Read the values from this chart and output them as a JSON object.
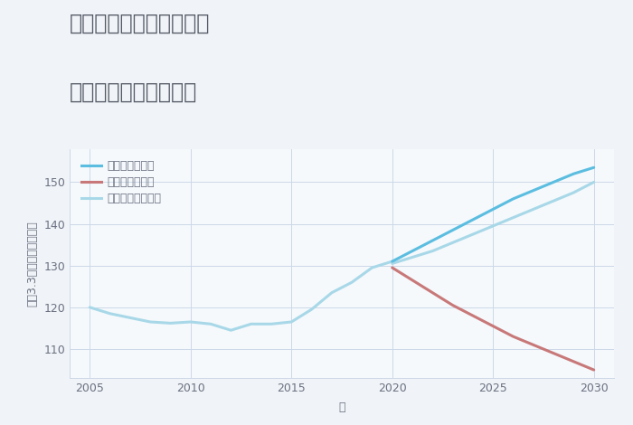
{
  "title_line1": "兵庫県西宮市今津曙町の",
  "title_line2": "中古戸建ての価格推移",
  "xlabel": "年",
  "ylabel": "坪（3.3㎡）単価（万円）",
  "background_color": "#f0f4f8",
  "plot_background_color": "#f5f9fc",
  "grid_color": "#ccd8e8",
  "years_historical": [
    2005,
    2006,
    2007,
    2008,
    2009,
    2010,
    2011,
    2012,
    2013,
    2014,
    2015,
    2016,
    2017,
    2018,
    2019,
    2020
  ],
  "values_historical": [
    120,
    118.5,
    117.5,
    116.5,
    116.2,
    116.5,
    116.0,
    114.5,
    116.0,
    116.0,
    116.5,
    119.5,
    123.5,
    126.0,
    129.5,
    131.0
  ],
  "years_good": [
    2020,
    2021,
    2022,
    2023,
    2024,
    2025,
    2026,
    2027,
    2028,
    2029,
    2030
  ],
  "values_good": [
    131.0,
    133.5,
    136.0,
    138.5,
    141.0,
    143.5,
    146.0,
    148.0,
    150.0,
    152.0,
    153.5
  ],
  "years_bad": [
    2020,
    2021,
    2022,
    2023,
    2024,
    2025,
    2026,
    2027,
    2028,
    2029,
    2030
  ],
  "values_bad": [
    129.5,
    126.5,
    123.5,
    120.5,
    118.0,
    115.5,
    113.0,
    111.0,
    109.0,
    107.0,
    105.0
  ],
  "years_normal": [
    2020,
    2021,
    2022,
    2023,
    2024,
    2025,
    2026,
    2027,
    2028,
    2029,
    2030
  ],
  "values_normal": [
    130.5,
    132.0,
    133.5,
    135.5,
    137.5,
    139.5,
    141.5,
    143.5,
    145.5,
    147.5,
    150.0
  ],
  "color_good": "#5bbde0",
  "color_bad": "#c87878",
  "color_normal": "#a8d8e8",
  "color_historical": "#a8d8e8",
  "legend_labels": [
    "グッドシナリオ",
    "バッドシナリオ",
    "ノーマルシナリオ"
  ],
  "legend_colors": [
    "#5bbde0",
    "#c87878",
    "#a8d8e8"
  ],
  "ylim": [
    103,
    158
  ],
  "xlim": [
    2004,
    2031
  ],
  "yticks": [
    110,
    120,
    130,
    140,
    150
  ],
  "xticks": [
    2005,
    2010,
    2015,
    2020,
    2025,
    2030
  ],
  "title_color": "#555a66",
  "tick_color": "#6a7080",
  "label_color": "#6a7080",
  "title_fontsize": 17,
  "legend_fontsize": 9,
  "axis_label_fontsize": 9,
  "tick_fontsize": 9
}
